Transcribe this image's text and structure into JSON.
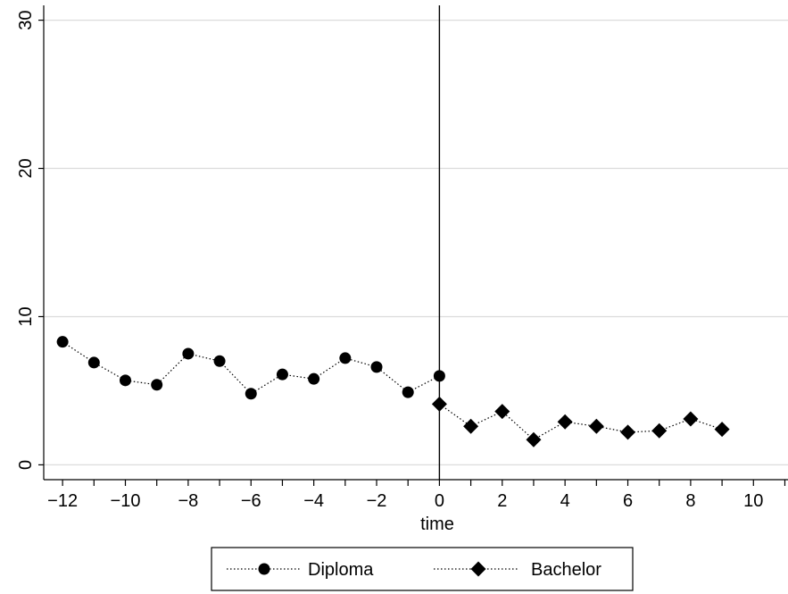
{
  "chart_data": {
    "type": "scatter",
    "xlabel": "time",
    "ylabel": "",
    "xlim": [
      -12.6,
      11.1
    ],
    "ylim": [
      -1,
      31
    ],
    "xticks": [
      -12,
      -10,
      -8,
      -6,
      -4,
      -2,
      0,
      2,
      4,
      6,
      8,
      10
    ],
    "xticks_minor": [
      -11,
      -9,
      -7,
      -5,
      -3,
      -1,
      1,
      3,
      5,
      7,
      9,
      11
    ],
    "xtick_labels": [
      "−12",
      "−10",
      "−8",
      "−6",
      "−4",
      "−2",
      "0",
      "2",
      "4",
      "6",
      "8",
      "10"
    ],
    "yticks": [
      0,
      10,
      20,
      30
    ],
    "ytick_labels": [
      "0",
      "10",
      "20",
      "30"
    ],
    "grid": true,
    "vline_x": 0,
    "legend_position": "bottom",
    "series": [
      {
        "name": "Diploma",
        "marker": "circle",
        "line": "dotted",
        "color": "#000000",
        "x": [
          -12,
          -11,
          -10,
          -9,
          -8,
          -7,
          -6,
          -5,
          -4,
          -3,
          -2,
          -1,
          0
        ],
        "y": [
          8.3,
          6.9,
          5.7,
          5.4,
          7.5,
          7.0,
          4.8,
          6.1,
          5.8,
          7.2,
          6.6,
          4.9,
          6.0
        ]
      },
      {
        "name": "Bachelor",
        "marker": "diamond",
        "line": "dotted",
        "color": "#000000",
        "x": [
          0,
          1,
          2,
          3,
          4,
          5,
          6,
          7,
          8,
          9
        ],
        "y": [
          4.1,
          2.6,
          3.6,
          1.7,
          2.9,
          2.6,
          2.2,
          2.3,
          3.1,
          2.4
        ]
      }
    ]
  }
}
